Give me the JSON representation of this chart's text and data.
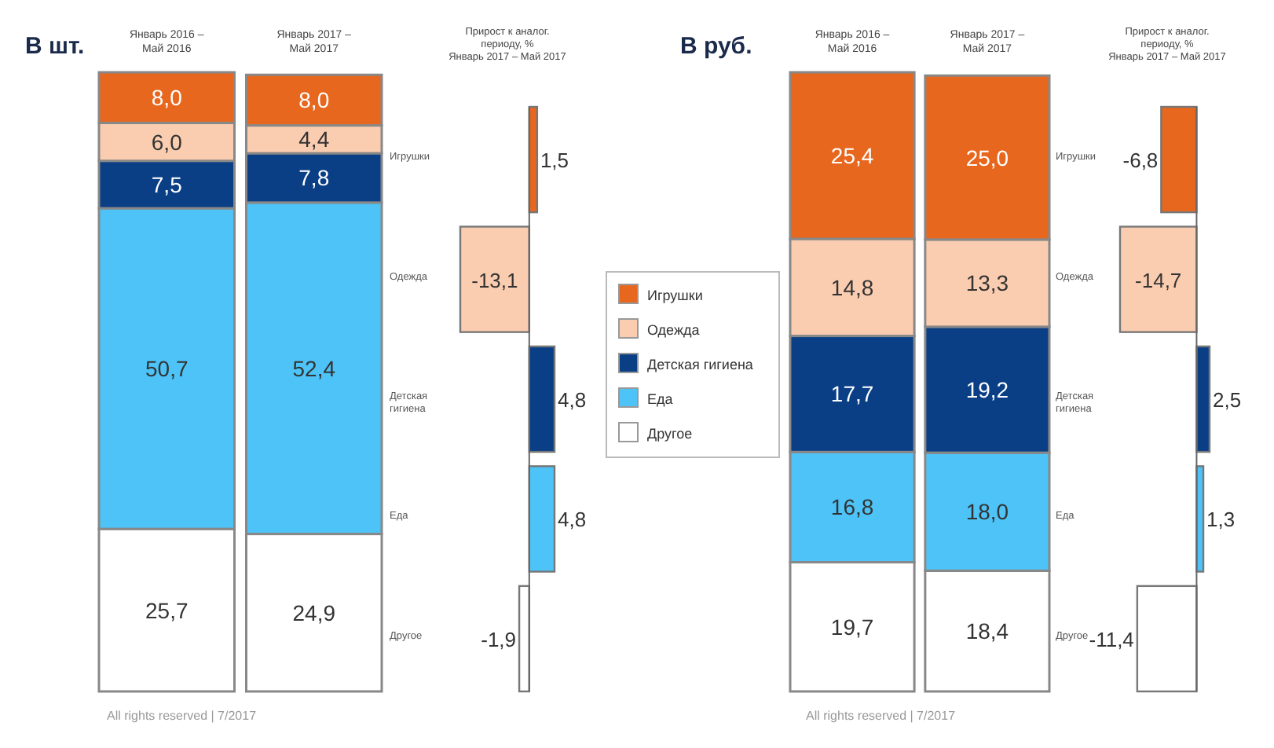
{
  "chart_data": [
    {
      "type": "bar",
      "stacked": true,
      "title": "В шт.",
      "categories": [
        "Январь 2016 – Май 2016",
        "Январь 2017 – Май 2017"
      ],
      "series": [
        {
          "name": "Другое",
          "color": "#ffffff",
          "values": [
            25.7,
            24.9
          ],
          "value_labels": [
            "25,7",
            "24,9"
          ]
        },
        {
          "name": "Еда",
          "color": "#4dc3f7",
          "values": [
            50.7,
            52.4
          ],
          "value_labels": [
            "50,7",
            "52,4"
          ]
        },
        {
          "name": "Детская гигиена",
          "color": "#0a3f86",
          "values": [
            7.5,
            7.8
          ],
          "value_labels": [
            "7,5",
            "7,8"
          ]
        },
        {
          "name": "Одежда",
          "color": "#fbcdb0",
          "values": [
            6.0,
            4.4
          ],
          "value_labels": [
            "6,0",
            "4,4"
          ]
        },
        {
          "name": "Игрушки",
          "color": "#e8671e",
          "values": [
            8.0,
            8.0
          ],
          "value_labels": [
            "8,0",
            "8,0"
          ]
        }
      ],
      "legend": "right",
      "annotations": [
        "All rights reserved | 7/2017"
      ]
    },
    {
      "type": "bar",
      "orientation": "horizontal",
      "title": "Прирост к аналог. периоду, %",
      "subtitle": "Январь 2017 – Май 2017",
      "categories": [
        "Игрушки",
        "Одежда",
        "Детская гигиена",
        "Еда",
        "Другое"
      ],
      "values": [
        1.5,
        -13.1,
        4.8,
        4.8,
        -1.9
      ],
      "value_labels": [
        "1,5",
        "-13,1",
        "4,8",
        "4,8",
        "-1,9"
      ],
      "colors": [
        "#e8671e",
        "#fbcdb0",
        "#0a3f86",
        "#4dc3f7",
        "#ffffff"
      ]
    },
    {
      "type": "bar",
      "stacked": true,
      "title": "В руб.",
      "categories": [
        "Январь 2016 – Май 2016",
        "Январь 2017 – Май 2017"
      ],
      "series": [
        {
          "color": "#ffffff",
          "values": [
            19.7,
            18.4
          ],
          "value_labels": [
            "19,7",
            "18,4"
          ]
        },
        {
          "color": "#4dc3f7",
          "values": [
            16.8,
            18.0
          ],
          "value_labels": [
            "16,8",
            "18,0"
          ]
        },
        {
          "color": "#0a3f86",
          "values": [
            17.7,
            19.2
          ],
          "value_labels": [
            "17,7",
            "19,2"
          ]
        },
        {
          "color": "#fbcdb0",
          "values": [
            14.8,
            13.3
          ],
          "value_labels": [
            "14,8",
            "13,3"
          ]
        },
        {
          "color": "#e8671e",
          "values": [
            25.4,
            25.0
          ],
          "value_labels": [
            "25,4",
            "25,0"
          ]
        }
      ],
      "annotations": [
        "All rights reserved | 7/2017"
      ]
    },
    {
      "type": "bar",
      "orientation": "horizontal",
      "title": "Прирост к аналог. периоду, %",
      "subtitle": "Январь 2017 – Май 2017",
      "categories": [
        "Игрушки",
        "Одежда",
        "Детская гигиена",
        "Еда",
        "Другое"
      ],
      "values": [
        -6.8,
        -14.7,
        2.5,
        1.3,
        -11.4
      ],
      "value_labels": [
        "-6,8",
        "-14,7",
        "2,5",
        "1,3",
        "-11,4"
      ],
      "colors": [
        "#e8671e",
        "#fbcdb0",
        "#0a3f86",
        "#4dc3f7",
        "#ffffff"
      ]
    }
  ]
}
